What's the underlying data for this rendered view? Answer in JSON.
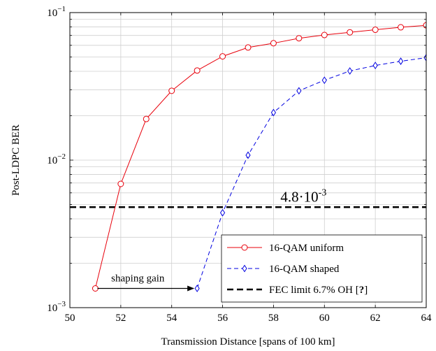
{
  "chart_data": {
    "type": "line",
    "xlabel": "Transmission Distance [spans of 100 km]",
    "ylabel": "Post-LDPC BER",
    "xlim": [
      50,
      64
    ],
    "ylim": [
      0.001,
      0.1
    ],
    "yscale": "log",
    "grid": true,
    "legend_position": "bottom-right",
    "x_ticks": [
      50,
      52,
      54,
      56,
      58,
      60,
      62,
      64
    ],
    "x_tick_labels": [
      "50",
      "52",
      "54",
      "56",
      "58",
      "60",
      "62",
      "64"
    ],
    "y_ticks": [
      {
        "value": 0.001,
        "base": "10",
        "exp": "−3"
      },
      {
        "value": 0.01,
        "base": "10",
        "exp": "−2"
      },
      {
        "value": 0.1,
        "base": "10",
        "exp": "−1"
      }
    ],
    "series": [
      {
        "name": "16-QAM uniform",
        "color": "#e8000b",
        "marker": "circle",
        "dash": "solid",
        "x": [
          51,
          52,
          53,
          54,
          55,
          56,
          57,
          58,
          59,
          60,
          61,
          62,
          63,
          64
        ],
        "y": [
          0.00135,
          0.0069,
          0.019,
          0.0295,
          0.0405,
          0.0505,
          0.058,
          0.062,
          0.067,
          0.0705,
          0.0735,
          0.0765,
          0.0795,
          0.082
        ]
      },
      {
        "name": "16-QAM shaped",
        "color": "#0000e0",
        "marker": "diamond",
        "dash": "dashed",
        "x": [
          55,
          56,
          57,
          58,
          59,
          60,
          61,
          62,
          63,
          64
        ],
        "y": [
          0.00135,
          0.0044,
          0.0108,
          0.021,
          0.0295,
          0.0348,
          0.0402,
          0.0438,
          0.0468,
          0.0495
        ]
      }
    ],
    "reference_line": {
      "name": "FEC limit 6.7% OH [",
      "citation": "?",
      "suffix": "]",
      "value": 0.0048,
      "color": "#000000",
      "dash": "dashed"
    },
    "annotations": {
      "threshold_mantissa": "4.8·10",
      "threshold_exp": "-3",
      "threshold_x": 58,
      "shaping_gain": {
        "label": "shaping gain",
        "x_from": 51,
        "x_to": 55,
        "y": 0.00135
      }
    }
  }
}
